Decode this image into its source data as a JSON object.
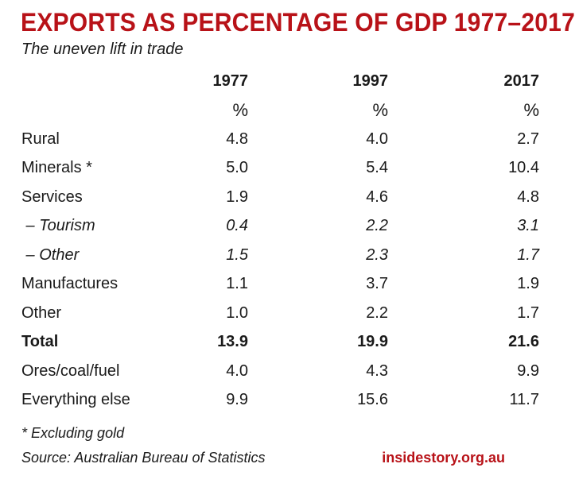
{
  "header": {
    "title": "EXPORTS AS PERCENTAGE OF GDP 1977–2017",
    "subtitle": "The uneven lift in trade"
  },
  "table": {
    "columns": [
      "1977",
      "1997",
      "2017"
    ],
    "units": [
      "%",
      "%",
      "%"
    ],
    "rows": [
      {
        "label": "Rural",
        "values": [
          "4.8",
          "4.0",
          "2.7"
        ],
        "style": "normal"
      },
      {
        "label": "Minerals *",
        "values": [
          "5.0",
          "5.4",
          "10.4"
        ],
        "style": "normal"
      },
      {
        "label": "Services",
        "values": [
          "1.9",
          "4.6",
          "4.8"
        ],
        "style": "normal"
      },
      {
        "label": " – Tourism",
        "values": [
          "0.4",
          "2.2",
          "3.1"
        ],
        "style": "italic"
      },
      {
        "label": " – Other",
        "values": [
          "1.5",
          "2.3",
          "1.7"
        ],
        "style": "italic"
      },
      {
        "label": "Manufactures",
        "values": [
          "1.1",
          "3.7",
          "1.9"
        ],
        "style": "normal"
      },
      {
        "label": "Other",
        "values": [
          "1.0",
          "2.2",
          "1.7"
        ],
        "style": "normal"
      },
      {
        "label": "Total",
        "values": [
          "13.9",
          "19.9",
          "21.6"
        ],
        "style": "bold"
      },
      {
        "label": "Ores/coal/fuel",
        "values": [
          "4.0",
          "4.3",
          "9.9"
        ],
        "style": "normal"
      },
      {
        "label": "Everything else",
        "values": [
          "9.9",
          "15.6",
          "11.7"
        ],
        "style": "normal"
      }
    ]
  },
  "footer": {
    "footnote": "* Excluding gold",
    "source": "Source: Australian Bureau of Statistics",
    "brand": "insidestory.org.au"
  },
  "colors": {
    "accent": "#b81218",
    "text": "#1a1a1a",
    "background": "#ffffff"
  }
}
